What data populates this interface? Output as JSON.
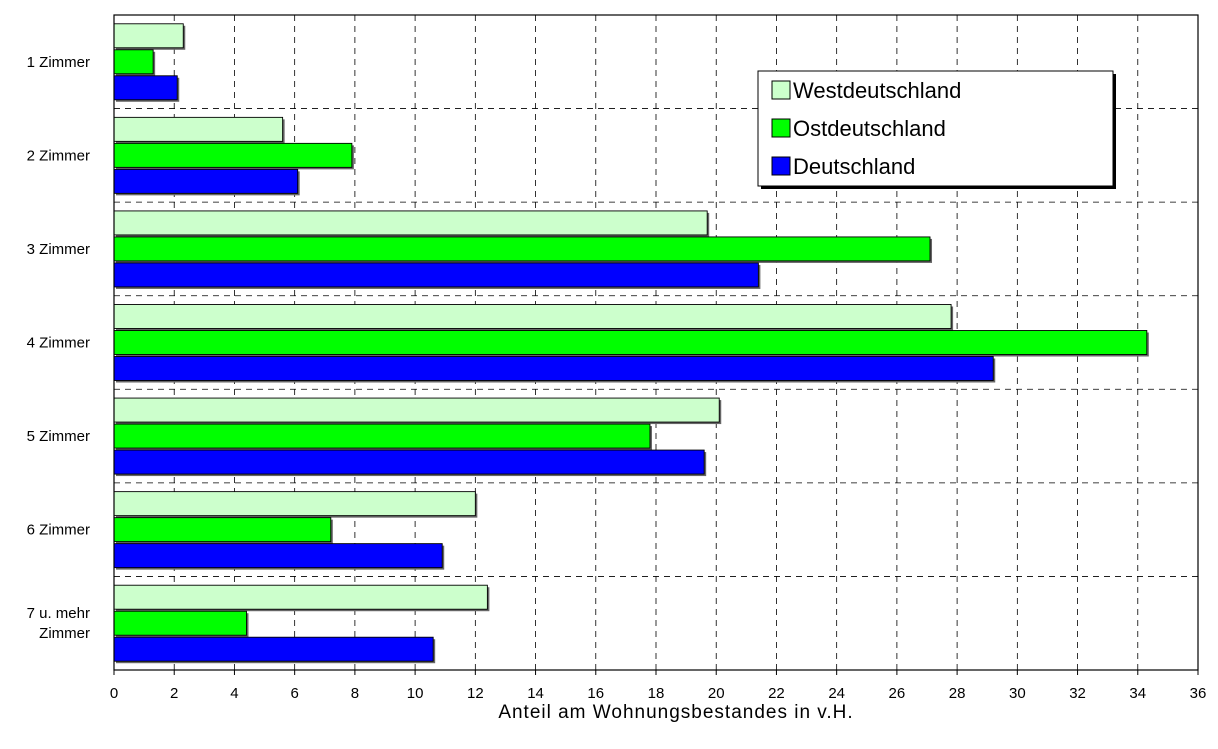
{
  "chart_data": {
    "type": "bar",
    "orientation": "horizontal",
    "categories": [
      [
        "1 Zimmer"
      ],
      [
        "2 Zimmer"
      ],
      [
        "3 Zimmer"
      ],
      [
        "4 Zimmer"
      ],
      [
        "5 Zimmer"
      ],
      [
        "6 Zimmer"
      ],
      [
        "7 u. mehr",
        "Zimmer"
      ]
    ],
    "series": [
      {
        "name": "Westdeutschland",
        "color": "#ccffcc",
        "values": [
          2.3,
          5.6,
          19.7,
          27.8,
          20.1,
          12.0,
          12.4
        ]
      },
      {
        "name": "Ostdeutschland",
        "color": "#00ff00",
        "values": [
          1.3,
          7.9,
          27.1,
          34.3,
          17.8,
          7.2,
          4.4
        ]
      },
      {
        "name": "Deutschland",
        "color": "#0000ff",
        "values": [
          2.1,
          6.1,
          21.4,
          29.2,
          19.6,
          10.9,
          10.6
        ]
      }
    ],
    "xlabel": "Anteil am Wohnungsbestandes in v.H.",
    "ylabel": "",
    "xlim": [
      0,
      36
    ],
    "xticks": [
      "0",
      "2",
      "4",
      "6",
      "8",
      "10",
      "12",
      "14",
      "16",
      "18",
      "20",
      "22",
      "24",
      "26",
      "28",
      "30",
      "32",
      "34",
      "36"
    ],
    "grid": true,
    "grid_style": "dashed",
    "legend_position": "top-right"
  }
}
